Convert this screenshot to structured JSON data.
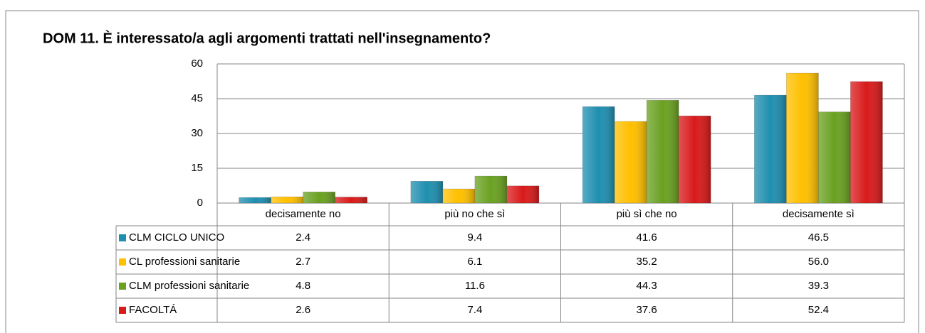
{
  "chart_data": {
    "type": "bar",
    "title": "DOM 11. È interessato/a agli argomenti trattati nell'insegnamento?",
    "categories": [
      "decisamente no",
      "più no che sì",
      "più sì che no",
      "decisamente sì"
    ],
    "series": [
      {
        "name": "CLM CICLO UNICO",
        "color": "#1f8fb0",
        "values": [
          2.4,
          9.4,
          41.6,
          46.5
        ],
        "value_labels": [
          "2.4",
          "9.4",
          "41.6",
          "46.5"
        ]
      },
      {
        "name": "CL professioni sanitarie",
        "color": "#ffc000",
        "values": [
          2.7,
          6.1,
          35.2,
          56.0
        ],
        "value_labels": [
          "2.7",
          "6.1",
          "35.2",
          "56.0"
        ]
      },
      {
        "name": "CLM professioni sanitarie",
        "color": "#6aa121",
        "values": [
          4.8,
          11.6,
          44.3,
          39.3
        ],
        "value_labels": [
          "4.8",
          "11.6",
          "44.3",
          "39.3"
        ]
      },
      {
        "name": "FACOLTÁ",
        "color": "#d91a1a",
        "values": [
          2.6,
          7.4,
          37.6,
          52.4
        ],
        "value_labels": [
          "2.6",
          "7.4",
          "37.6",
          "52.4"
        ]
      }
    ],
    "ylim": [
      0,
      60
    ],
    "yticks": [
      0,
      15,
      30,
      45,
      60
    ],
    "grid": true
  }
}
